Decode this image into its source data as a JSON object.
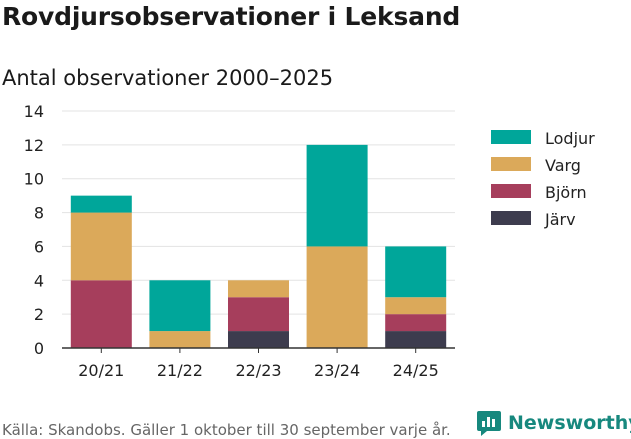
{
  "title": "Rovdjursobservationer i Leksand",
  "subtitle": "Antal observationer 2000–2025",
  "source": "Källa: Skandobs. Gäller 1 oktober till 30 september varje år.",
  "brand": "Newsworthy",
  "chart_data": {
    "type": "bar",
    "stacked": true,
    "categories": [
      "20/21",
      "21/22",
      "22/23",
      "23/24",
      "24/25"
    ],
    "series": [
      {
        "name": "Järv",
        "color": "#3d3c4e",
        "values": [
          0,
          0,
          1,
          0,
          1
        ]
      },
      {
        "name": "Björn",
        "color": "#a63e5c",
        "values": [
          4,
          0,
          2,
          0,
          1
        ]
      },
      {
        "name": "Varg",
        "color": "#dba95a",
        "values": [
          4,
          1,
          1,
          6,
          1
        ]
      },
      {
        "name": "Lodjur",
        "color": "#00a69a",
        "values": [
          1,
          3,
          0,
          6,
          3
        ]
      }
    ],
    "legend_order": [
      "Lodjur",
      "Varg",
      "Björn",
      "Järv"
    ],
    "legend_position": "right",
    "ylim": [
      0,
      14
    ],
    "yticks": [
      0,
      2,
      4,
      6,
      8,
      10,
      12,
      14
    ],
    "grid": true,
    "xlabel": "",
    "ylabel": ""
  }
}
